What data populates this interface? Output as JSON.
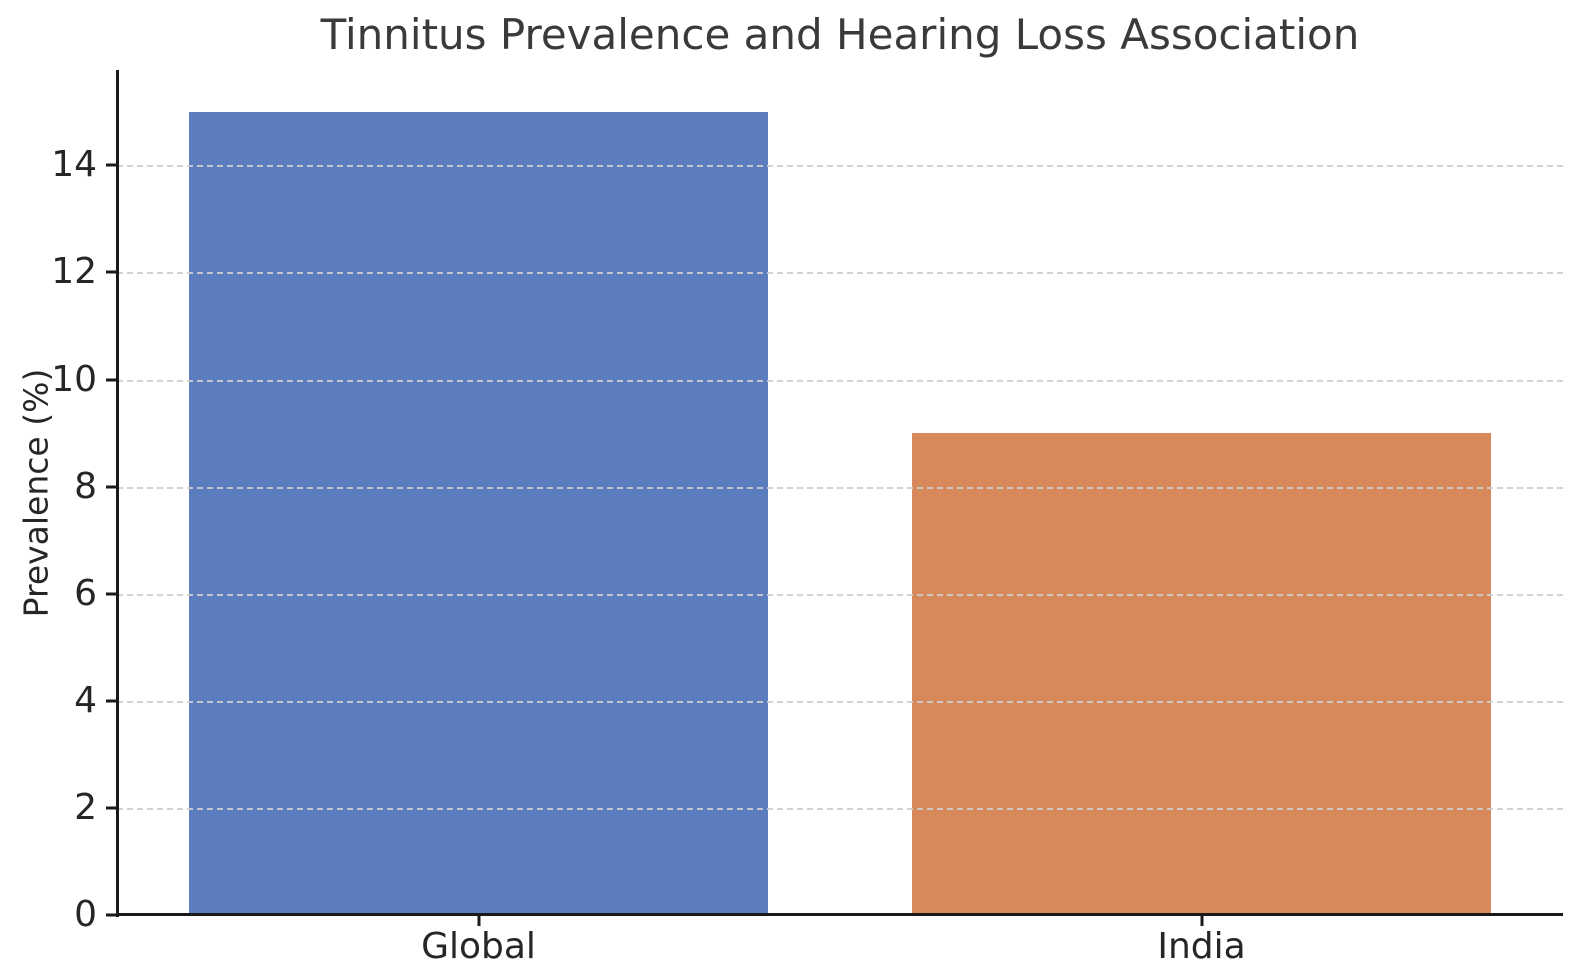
{
  "chart_data": {
    "type": "bar",
    "title": "Tinnitus Prevalence and Hearing Loss Association",
    "xlabel": "",
    "ylabel": "Prevalence (%)",
    "categories": [
      "Global",
      "India"
    ],
    "values": [
      15,
      9
    ],
    "bar_colors": [
      "#5B7CBE",
      "#D8895B"
    ],
    "yticks": [
      0,
      2,
      4,
      6,
      8,
      10,
      12,
      14
    ],
    "ylim": [
      0,
      15.78
    ],
    "bar_width_fraction": 0.8,
    "grid": "horizontal-dashed-above-bars",
    "legend": "none",
    "spines": [
      "left",
      "bottom"
    ],
    "colors": {
      "spine": "#1a1a1a",
      "grid": "#cecece",
      "title_text": "#3a3a3a",
      "tick_text": "#262626",
      "background": "#ffffff"
    }
  }
}
